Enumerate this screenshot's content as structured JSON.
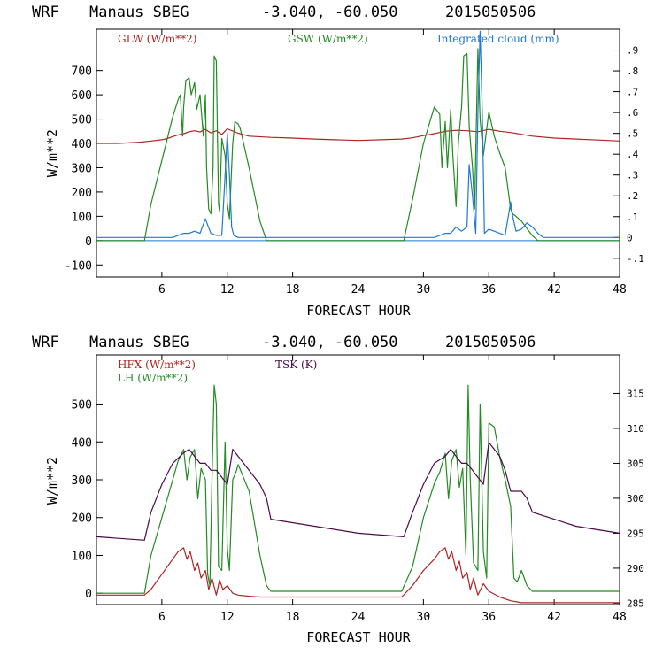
{
  "chart_data": [
    {
      "type": "line",
      "header": {
        "model": "WRF",
        "station": "Manaus SBEG",
        "coords": "-3.040, -60.050",
        "date": "2015050506"
      },
      "xlabel": "FORECAST HOUR",
      "ylabel": "W/m**2",
      "xlim": [
        0,
        48
      ],
      "ylim": [
        -150,
        870
      ],
      "xticks": [
        6,
        12,
        18,
        24,
        30,
        36,
        42,
        48
      ],
      "yticks": [
        -100,
        0,
        100,
        200,
        300,
        400,
        500,
        600,
        700
      ],
      "y2lim": [
        -0.19,
        1.0
      ],
      "y2ticks": [
        -0.1,
        0,
        0.1,
        0.2,
        0.3,
        0.4,
        0.5,
        0.6,
        0.7,
        0.8,
        0.9
      ],
      "y2ticklabels": [
        "-.1",
        "0",
        ".1",
        ".2",
        ".3",
        ".4",
        ".5",
        ".6",
        ".7",
        ".8",
        ".9"
      ],
      "series": [
        {
          "name": "GLW (W/m**2)",
          "color": "#b22222",
          "axis": "left",
          "x": [
            0,
            2,
            4,
            5,
            6,
            6.5,
            7,
            7.5,
            8,
            8.5,
            9,
            9.5,
            10,
            10.5,
            11,
            11.5,
            12,
            13,
            14,
            16,
            18,
            20,
            24,
            28,
            29,
            30,
            31,
            32,
            33,
            34,
            35,
            36,
            37,
            38,
            40,
            42,
            44,
            46,
            48
          ],
          "y": [
            400,
            400,
            405,
            410,
            415,
            420,
            428,
            435,
            440,
            448,
            452,
            447,
            458,
            443,
            452,
            437,
            460,
            442,
            430,
            425,
            422,
            418,
            412,
            418,
            423,
            432,
            440,
            450,
            454,
            452,
            448,
            458,
            450,
            445,
            430,
            422,
            418,
            414,
            410
          ]
        },
        {
          "name": "GSW (W/m**2)",
          "color": "#228b22",
          "axis": "left",
          "x": [
            0,
            4.4,
            5,
            6,
            7,
            7.5,
            7.7,
            7.9,
            8,
            8.2,
            8.5,
            8.7,
            9,
            9.2,
            9.5,
            9.8,
            10,
            10.1,
            10.3,
            10.5,
            10.7,
            10.8,
            11,
            11.2,
            11.3,
            11.5,
            11.8,
            12,
            12.2,
            12.5,
            12.7,
            13,
            13.2,
            14,
            15,
            15.6,
            16,
            28.2,
            29,
            30,
            31,
            31.5,
            31.7,
            32,
            32.2,
            32.5,
            32.7,
            33,
            33.2,
            33.5,
            33.7,
            34,
            34.2,
            34.5,
            34.7,
            35,
            35.2,
            35.5,
            36,
            36.5,
            37,
            37.5,
            38,
            38.2,
            38.5,
            39,
            39.5,
            40,
            40.5,
            48
          ],
          "y": [
            0,
            0,
            150,
            330,
            510,
            580,
            600,
            430,
            550,
            660,
            670,
            600,
            650,
            540,
            600,
            430,
            600,
            300,
            130,
            110,
            300,
            760,
            740,
            150,
            120,
            420,
            350,
            150,
            90,
            400,
            490,
            480,
            460,
            300,
            80,
            0,
            0,
            0,
            170,
            400,
            550,
            520,
            300,
            490,
            300,
            540,
            350,
            140,
            400,
            550,
            760,
            770,
            470,
            300,
            130,
            790,
            500,
            350,
            530,
            430,
            360,
            300,
            130,
            110,
            100,
            80,
            50,
            20,
            0,
            0
          ]
        },
        {
          "name": "Integrated cloud (mm)",
          "color": "#1f78d1",
          "axis": "right",
          "x": [
            0,
            7,
            8,
            8.5,
            9,
            9.5,
            10,
            10.2,
            10.5,
            11,
            11.5,
            11.8,
            12,
            12.2,
            12.4,
            12.6,
            13,
            31,
            32,
            32.5,
            33,
            33.5,
            34,
            34.2,
            34.5,
            34.8,
            35,
            35.2,
            35.4,
            35.6,
            36,
            36.5,
            37,
            37.5,
            38,
            38.2,
            38.5,
            39,
            39.5,
            40,
            40.5,
            41,
            48
          ],
          "y": [
            0,
            0,
            0.02,
            0.02,
            0.03,
            0.02,
            0.09,
            0.06,
            0.02,
            0.01,
            0.01,
            0.3,
            0.5,
            0.3,
            0.05,
            0.01,
            0,
            0,
            0.02,
            0.02,
            0.05,
            0.03,
            0.05,
            0.35,
            0.2,
            0.02,
            0.6,
            0.99,
            0.6,
            0.02,
            0.04,
            0.03,
            0.02,
            0.01,
            0.17,
            0.1,
            0.03,
            0.04,
            0.07,
            0.05,
            0.02,
            0,
            0
          ]
        }
      ]
    },
    {
      "type": "line",
      "header": {
        "model": "WRF",
        "station": "Manaus SBEG",
        "coords": "-3.040, -60.050",
        "date": "2015050506"
      },
      "xlabel": "FORECAST HOUR",
      "ylabel": "W/m**2",
      "xlim": [
        0,
        48
      ],
      "ylim": [
        -30,
        630
      ],
      "xticks": [
        6,
        12,
        18,
        24,
        30,
        36,
        42,
        48
      ],
      "yticks": [
        0,
        100,
        200,
        300,
        400,
        500
      ],
      "y2lim": [
        284.8,
        320.5
      ],
      "y2ticks": [
        285,
        290,
        295,
        300,
        305,
        310,
        315
      ],
      "y2ticklabels": [
        "285",
        "290",
        "295",
        "300",
        "305",
        "310",
        "315"
      ],
      "series": [
        {
          "name": "HFX (W/m**2)",
          "color": "#b22222",
          "axis": "left",
          "x": [
            0,
            4.4,
            5,
            6,
            7,
            7.5,
            8,
            8.3,
            8.6,
            9,
            9.3,
            9.6,
            10,
            10.3,
            10.6,
            11,
            11.3,
            11.6,
            12,
            12.5,
            13,
            14,
            15,
            16,
            20,
            24,
            28,
            29,
            30,
            31,
            31.5,
            32,
            32.3,
            32.6,
            33,
            33.3,
            33.6,
            34,
            34.3,
            34.6,
            35,
            35.5,
            36,
            37,
            38,
            39,
            40,
            48
          ],
          "y": [
            -5,
            -5,
            10,
            50,
            90,
            110,
            120,
            90,
            110,
            60,
            80,
            40,
            60,
            10,
            40,
            -5,
            35,
            10,
            20,
            0,
            -5,
            -8,
            -10,
            -10,
            -10,
            -10,
            -10,
            20,
            60,
            90,
            110,
            120,
            90,
            110,
            60,
            85,
            40,
            55,
            10,
            40,
            -5,
            25,
            5,
            -10,
            -20,
            -25,
            -25,
            -25
          ]
        },
        {
          "name": "LH (W/m**2)",
          "color": "#228b22",
          "axis": "left",
          "x": [
            0,
            4.4,
            5,
            6,
            7,
            7.5,
            8,
            8.3,
            8.6,
            9,
            9.3,
            9.6,
            10,
            10.2,
            10.4,
            10.6,
            10.8,
            11,
            11.2,
            11.5,
            11.8,
            12,
            12.2,
            12.5,
            12.8,
            13,
            14,
            15,
            15.6,
            16,
            20,
            24,
            28,
            29,
            30,
            31,
            31.5,
            32,
            32.3,
            32.6,
            33,
            33.3,
            33.6,
            33.9,
            34.1,
            34.3,
            34.6,
            35,
            35.2,
            35.5,
            35.8,
            36,
            36.5,
            37,
            37.5,
            38,
            38.3,
            38.6,
            39,
            39.5,
            40,
            48
          ],
          "y": [
            0,
            0,
            100,
            200,
            300,
            350,
            380,
            300,
            360,
            380,
            250,
            330,
            300,
            50,
            20,
            300,
            550,
            500,
            70,
            60,
            400,
            120,
            60,
            300,
            320,
            340,
            270,
            100,
            20,
            5,
            5,
            5,
            5,
            70,
            200,
            290,
            320,
            370,
            250,
            350,
            380,
            280,
            330,
            100,
            550,
            300,
            80,
            60,
            500,
            110,
            40,
            450,
            440,
            360,
            300,
            230,
            40,
            30,
            60,
            20,
            5,
            5
          ]
        },
        {
          "name": "TSK (K)",
          "color": "#4b0a4b",
          "axis": "right",
          "x": [
            0,
            4.4,
            5,
            6,
            7,
            8,
            8.5,
            9,
            9.5,
            10,
            10.5,
            11,
            11.5,
            12,
            12.5,
            13,
            14,
            15,
            15.6,
            16,
            20,
            24,
            28.2,
            29,
            30,
            31,
            32,
            32.5,
            33,
            33.5,
            34,
            34.5,
            35,
            35.5,
            36,
            36.5,
            37,
            37.5,
            38,
            38.5,
            39,
            39.5,
            40,
            42,
            44,
            46,
            48
          ],
          "y": [
            294.5,
            294,
            298,
            302,
            305,
            306.5,
            307,
            306,
            305,
            305,
            304,
            304,
            303,
            302,
            307,
            306,
            304,
            302,
            300,
            297,
            296,
            295,
            294.5,
            298,
            302,
            305,
            306,
            307,
            306,
            305,
            305,
            304,
            303,
            302,
            308,
            307,
            306,
            304,
            301,
            301,
            301,
            300,
            298,
            297,
            296,
            295.5,
            295
          ]
        }
      ]
    }
  ]
}
